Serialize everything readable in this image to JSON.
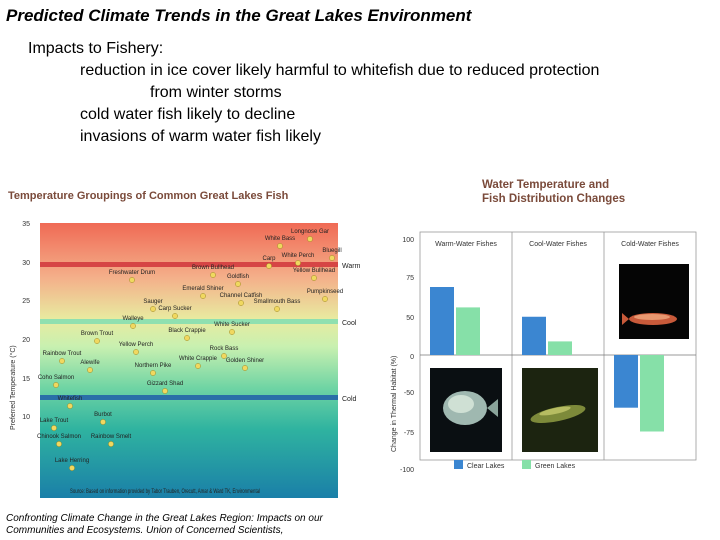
{
  "slide": {
    "title": "Predicted Climate Trends in the Great Lakes Environment",
    "heading": "Impacts to Fishery:",
    "bullets": [
      "reduction in ice cover likely harmful to whitefish due to reduced protection",
      "from winter storms",
      "cold water fish likely to decline",
      "invasions of warm water fish likely"
    ],
    "citation": [
      "Confronting Climate Change in the Great Lakes Region: Impacts on our",
      "Communities and Ecosystems. Union of Concerned Scientists,"
    ]
  },
  "left_figure": {
    "title": "Temperature Groupings of Common Great Lakes Fish",
    "ylabel": "Preferred Temperature (°C)",
    "source": "Source: Based on information provided by Tabor Trauben, Orecutt, Amar & Ward TK, Environmental",
    "y_ticks": [
      "35",
      "30",
      "25",
      "20",
      "15",
      "10"
    ],
    "band_labels": [
      "Warm",
      "Cool",
      "Cold"
    ],
    "colors": {
      "warm_line": "#d64545",
      "cool_line": "#8fe0b0",
      "cold_line": "#2a6fa8",
      "point": "#f0d860"
    },
    "fish": [
      "Freshwater Drum",
      "Brown Bullhead",
      "Goldfish",
      "Longnose Gar",
      "White Bass",
      "White Perch",
      "Bluegill",
      "Carp",
      "Yellow Bullhead",
      "Sauger",
      "Emerald Shiner",
      "Channel Catfish",
      "Smallmouth Bass",
      "Pumpkinseed",
      "Walleye",
      "Carp Sucker",
      "Black Crappie",
      "White Sucker",
      "Brown Trout",
      "Rainbow Trout",
      "Yellow Perch",
      "Rock Bass",
      "Alewife",
      "Northern Pike",
      "White Crappie",
      "Golden Shiner",
      "Coho Salmon",
      "Gizzard Shad",
      "Whitefish",
      "Burbot",
      "Lake Trout",
      "Chinook Salmon",
      "Rainbow Smelt",
      "Lake Herring"
    ]
  },
  "right_figure": {
    "title_lines": [
      "Water Temperature and",
      "Fish Distribution Changes"
    ],
    "ylabel": "Change in Thermal Habitat (%)",
    "colors": {
      "clear": "#3b86d1",
      "green": "#86e0a8"
    },
    "chart_data": {
      "type": "bar",
      "categories": [
        "Warm-Water Fishes",
        "Cool-Water Fishes",
        "Cold-Water Fishes"
      ],
      "series": [
        {
          "name": "Clear Lakes",
          "values": [
            80,
            45,
            -62
          ]
        },
        {
          "name": "Green Lakes",
          "values": [
            56,
            16,
            -90
          ]
        }
      ],
      "y_ticks": [
        "100",
        "75",
        "50",
        "0",
        "-50",
        "-75",
        "-100"
      ],
      "ylim": [
        -115,
        100
      ],
      "legend": "bottom"
    }
  }
}
